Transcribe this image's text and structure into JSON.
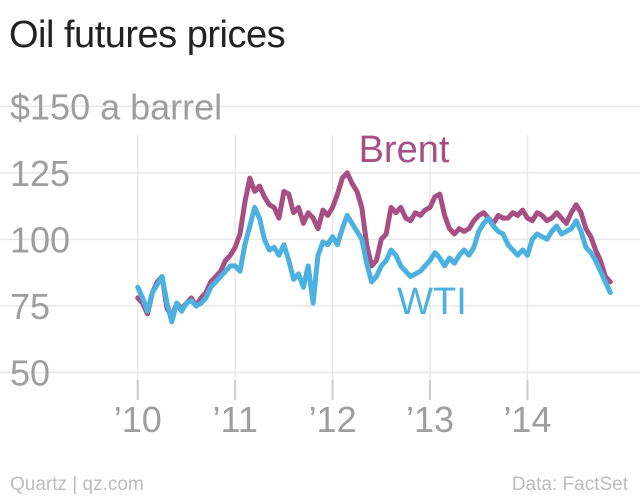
{
  "title": "Oil futures prices",
  "footer": {
    "source_left": "Quartz | qz.com",
    "source_right": "Data: FactSet"
  },
  "colors": {
    "brent": "#a74f85",
    "wti": "#4ab1e1",
    "grid": "#e8e8e8",
    "text": "#222222",
    "muted": "#9e9e9e"
  },
  "chart_data": {
    "type": "line",
    "title": "Oil futures prices",
    "ylabel": "",
    "xlabel": "",
    "ylim": [
      40,
      158
    ],
    "xlim": [
      2009.9,
      2014.95
    ],
    "grid": true,
    "yticks": [
      {
        "value": 150,
        "label": "$150 a barrel"
      },
      {
        "value": 125,
        "label": "125"
      },
      {
        "value": 100,
        "label": "100"
      },
      {
        "value": 75,
        "label": "75"
      },
      {
        "value": 50,
        "label": "50"
      }
    ],
    "xticks": [
      {
        "value": 2010,
        "label": "’10"
      },
      {
        "value": 2011,
        "label": "’11"
      },
      {
        "value": 2012,
        "label": "’12"
      },
      {
        "value": 2013,
        "label": "’13"
      },
      {
        "value": 2014,
        "label": "’14"
      }
    ],
    "series": [
      {
        "name": "Brent",
        "color": "#a74f85",
        "x": [
          2010.0,
          2010.05,
          2010.1,
          2010.15,
          2010.2,
          2010.25,
          2010.3,
          2010.35,
          2010.4,
          2010.45,
          2010.5,
          2010.55,
          2010.6,
          2010.65,
          2010.7,
          2010.75,
          2010.8,
          2010.85,
          2010.9,
          2010.95,
          2011.0,
          2011.05,
          2011.1,
          2011.15,
          2011.2,
          2011.25,
          2011.3,
          2011.35,
          2011.4,
          2011.45,
          2011.5,
          2011.55,
          2011.6,
          2011.65,
          2011.7,
          2011.75,
          2011.8,
          2011.85,
          2011.9,
          2011.95,
          2012.0,
          2012.05,
          2012.1,
          2012.15,
          2012.2,
          2012.25,
          2012.3,
          2012.35,
          2012.4,
          2012.45,
          2012.5,
          2012.55,
          2012.6,
          2012.65,
          2012.7,
          2012.75,
          2012.8,
          2012.85,
          2012.9,
          2012.95,
          2013.0,
          2013.05,
          2013.1,
          2013.15,
          2013.2,
          2013.25,
          2013.3,
          2013.35,
          2013.4,
          2013.45,
          2013.5,
          2013.55,
          2013.6,
          2013.65,
          2013.7,
          2013.75,
          2013.8,
          2013.85,
          2013.9,
          2013.95,
          2014.0,
          2014.05,
          2014.1,
          2014.15,
          2014.2,
          2014.25,
          2014.3,
          2014.35,
          2014.4,
          2014.45,
          2014.5,
          2014.55,
          2014.6,
          2014.65,
          2014.7,
          2014.75,
          2014.8,
          2014.85
        ],
        "values": [
          78,
          76,
          72,
          80,
          84,
          86,
          74,
          71,
          76,
          74,
          76,
          78,
          75,
          78,
          80,
          84,
          86,
          88,
          92,
          94,
          97,
          102,
          114,
          123,
          118,
          120,
          116,
          113,
          112,
          108,
          118,
          117,
          110,
          112,
          106,
          110,
          108,
          104,
          111,
          109,
          112,
          117,
          123,
          125,
          121,
          118,
          112,
          98,
          90,
          92,
          100,
          102,
          112,
          110,
          112,
          108,
          107,
          110,
          109,
          111,
          112,
          116,
          117,
          109,
          104,
          102,
          104,
          103,
          104,
          107,
          109,
          110,
          108,
          106,
          109,
          108,
          108,
          110,
          109,
          111,
          108,
          107,
          110,
          109,
          107,
          108,
          110,
          108,
          106,
          110,
          113,
          110,
          104,
          101,
          96,
          92,
          86,
          84
        ]
      },
      {
        "name": "WTI",
        "color": "#4ab1e1",
        "x": [
          2010.0,
          2010.05,
          2010.1,
          2010.15,
          2010.2,
          2010.25,
          2010.3,
          2010.35,
          2010.4,
          2010.45,
          2010.5,
          2010.55,
          2010.6,
          2010.65,
          2010.7,
          2010.75,
          2010.8,
          2010.85,
          2010.9,
          2010.95,
          2011.0,
          2011.05,
          2011.1,
          2011.15,
          2011.2,
          2011.25,
          2011.3,
          2011.35,
          2011.4,
          2011.45,
          2011.5,
          2011.55,
          2011.6,
          2011.65,
          2011.7,
          2011.75,
          2011.8,
          2011.85,
          2011.9,
          2011.95,
          2012.0,
          2012.05,
          2012.1,
          2012.15,
          2012.2,
          2012.25,
          2012.3,
          2012.35,
          2012.4,
          2012.45,
          2012.5,
          2012.55,
          2012.6,
          2012.65,
          2012.7,
          2012.75,
          2012.8,
          2012.85,
          2012.9,
          2012.95,
          2013.0,
          2013.05,
          2013.1,
          2013.15,
          2013.2,
          2013.25,
          2013.3,
          2013.35,
          2013.4,
          2013.45,
          2013.5,
          2013.55,
          2013.6,
          2013.65,
          2013.7,
          2013.75,
          2013.8,
          2013.85,
          2013.9,
          2013.95,
          2014.0,
          2014.05,
          2014.1,
          2014.15,
          2014.2,
          2014.25,
          2014.3,
          2014.35,
          2014.4,
          2014.45,
          2014.5,
          2014.55,
          2014.6,
          2014.65,
          2014.7,
          2014.75,
          2014.8,
          2014.85
        ],
        "values": [
          82,
          78,
          73,
          80,
          83,
          86,
          76,
          69,
          76,
          73,
          76,
          77,
          75,
          76,
          78,
          82,
          84,
          86,
          88,
          90,
          90,
          88,
          98,
          105,
          112,
          108,
          100,
          96,
          97,
          94,
          98,
          92,
          85,
          87,
          82,
          90,
          76,
          94,
          99,
          98,
          101,
          98,
          104,
          109,
          106,
          103,
          100,
          91,
          84,
          86,
          90,
          92,
          96,
          94,
          90,
          88,
          86,
          87,
          88,
          90,
          92,
          95,
          93,
          90,
          93,
          91,
          94,
          96,
          94,
          97,
          103,
          106,
          108,
          105,
          103,
          102,
          98,
          96,
          94,
          96,
          94,
          100,
          102,
          101,
          100,
          103,
          105,
          102,
          103,
          104,
          107,
          103,
          97,
          95,
          92,
          88,
          84,
          80
        ]
      }
    ],
    "annotations": [
      {
        "text": "Brent",
        "series": "Brent"
      },
      {
        "text": "WTI",
        "series": "WTI"
      }
    ]
  }
}
